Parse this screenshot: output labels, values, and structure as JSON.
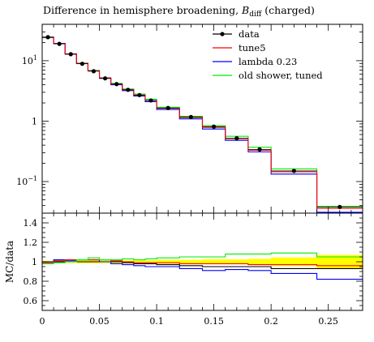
{
  "chart_data": [
    {
      "type": "line",
      "panel": "main",
      "title": "Difference in hemisphere broadening,",
      "title_symbol": "B",
      "title_subscript": "diff",
      "title_suffix": "(charged)",
      "ylabel": "",
      "xlabel": "",
      "yscale": "log",
      "ylim": [
        0.03,
        40
      ],
      "xlim": [
        0,
        0.28
      ],
      "ytick_labels": [
        {
          "value": 10,
          "label": "10",
          "sup": "1"
        },
        {
          "value": 1,
          "label": "1",
          "sup": ""
        },
        {
          "value": 0.1,
          "label": "10",
          "sup": "−1"
        }
      ],
      "legend_position": "top-right",
      "bin_edges": [
        0,
        0.01,
        0.02,
        0.03,
        0.04,
        0.05,
        0.06,
        0.07,
        0.08,
        0.09,
        0.1,
        0.12,
        0.14,
        0.16,
        0.18,
        0.2,
        0.24,
        0.28
      ],
      "series": [
        {
          "name": "data",
          "color": "#000000",
          "style": "points",
          "x": [
            0.005,
            0.015,
            0.025,
            0.035,
            0.045,
            0.055,
            0.065,
            0.075,
            0.085,
            0.095,
            0.11,
            0.13,
            0.15,
            0.17,
            0.19,
            0.22,
            0.26
          ],
          "values": [
            24.5,
            19.0,
            12.8,
            8.9,
            6.7,
            5.1,
            4.1,
            3.3,
            2.7,
            2.2,
            1.65,
            1.17,
            0.81,
            0.52,
            0.34,
            0.15,
            0.038
          ]
        },
        {
          "name": "tune5",
          "color": "#ff0000",
          "style": "step",
          "values": [
            24.3,
            19.1,
            13.0,
            9.0,
            6.8,
            5.2,
            4.1,
            3.3,
            2.7,
            2.2,
            1.63,
            1.15,
            0.79,
            0.51,
            0.33,
            0.145,
            0.036
          ]
        },
        {
          "name": "lambda 0.23",
          "color": "#0000ff",
          "style": "step",
          "values": [
            24.6,
            19.3,
            12.9,
            9.0,
            6.8,
            5.1,
            4.0,
            3.2,
            2.6,
            2.1,
            1.56,
            1.09,
            0.74,
            0.48,
            0.31,
            0.133,
            0.031
          ]
        },
        {
          "name": "old shower, tuned",
          "color": "#00ee00",
          "style": "step",
          "values": [
            24.0,
            19.2,
            12.9,
            9.1,
            6.9,
            5.2,
            4.2,
            3.4,
            2.8,
            2.3,
            1.7,
            1.2,
            0.84,
            0.56,
            0.37,
            0.162,
            0.039
          ]
        }
      ]
    },
    {
      "type": "line",
      "panel": "ratio",
      "ylabel": "MC/data",
      "xlabel": "",
      "ylim": [
        0.5,
        1.5
      ],
      "xlim": [
        0,
        0.28
      ],
      "ytick_labels": [
        "0.6",
        "0.8",
        "1",
        "1.2",
        "1.4"
      ],
      "yticks": [
        0.6,
        0.8,
        1.0,
        1.2,
        1.4
      ],
      "xtick_labels": [
        "0",
        "0.05",
        "0.1",
        "0.15",
        "0.2",
        "0.25"
      ],
      "xticks": [
        0,
        0.05,
        0.1,
        0.15,
        0.2,
        0.25
      ],
      "bin_edges": [
        0,
        0.01,
        0.02,
        0.03,
        0.04,
        0.05,
        0.06,
        0.07,
        0.08,
        0.09,
        0.1,
        0.12,
        0.14,
        0.16,
        0.18,
        0.2,
        0.24,
        0.28
      ],
      "uncertainty_band": {
        "color": "#ffff00",
        "lower": [
          0.99,
          0.99,
          0.99,
          0.985,
          0.985,
          0.985,
          0.985,
          0.985,
          0.985,
          0.985,
          0.98,
          0.98,
          0.975,
          0.975,
          0.97,
          0.955,
          0.93
        ],
        "upper": [
          1.01,
          1.01,
          1.01,
          1.015,
          1.015,
          1.015,
          1.015,
          1.015,
          1.015,
          1.015,
          1.02,
          1.02,
          1.025,
          1.025,
          1.03,
          1.045,
          1.07
        ]
      },
      "series": [
        {
          "name": "data",
          "color": "#000000",
          "values": [
            1.0,
            1.0,
            1.0,
            1.0,
            1.0,
            1.0,
            1.0,
            0.99,
            0.98,
            0.98,
            0.97,
            0.96,
            0.95,
            0.95,
            0.95,
            0.93,
            0.93
          ]
        },
        {
          "name": "tune5",
          "color": "#ff0000",
          "values": [
            0.99,
            1.01,
            1.02,
            1.02,
            1.02,
            1.02,
            1.01,
            1.0,
            0.99,
            0.99,
            0.99,
            0.98,
            0.98,
            0.98,
            0.97,
            0.97,
            0.96
          ]
        },
        {
          "name": "lambda 0.23",
          "color": "#0000ff",
          "values": [
            1.0,
            1.02,
            1.01,
            1.02,
            1.02,
            1.0,
            0.98,
            0.97,
            0.96,
            0.95,
            0.95,
            0.93,
            0.91,
            0.92,
            0.91,
            0.88,
            0.82
          ]
        },
        {
          "name": "old shower, tuned",
          "color": "#00ee00",
          "values": [
            0.98,
            0.99,
            1.0,
            1.02,
            1.04,
            1.02,
            1.02,
            1.03,
            1.02,
            1.03,
            1.04,
            1.05,
            1.05,
            1.08,
            1.08,
            1.09,
            1.05
          ]
        }
      ]
    }
  ]
}
